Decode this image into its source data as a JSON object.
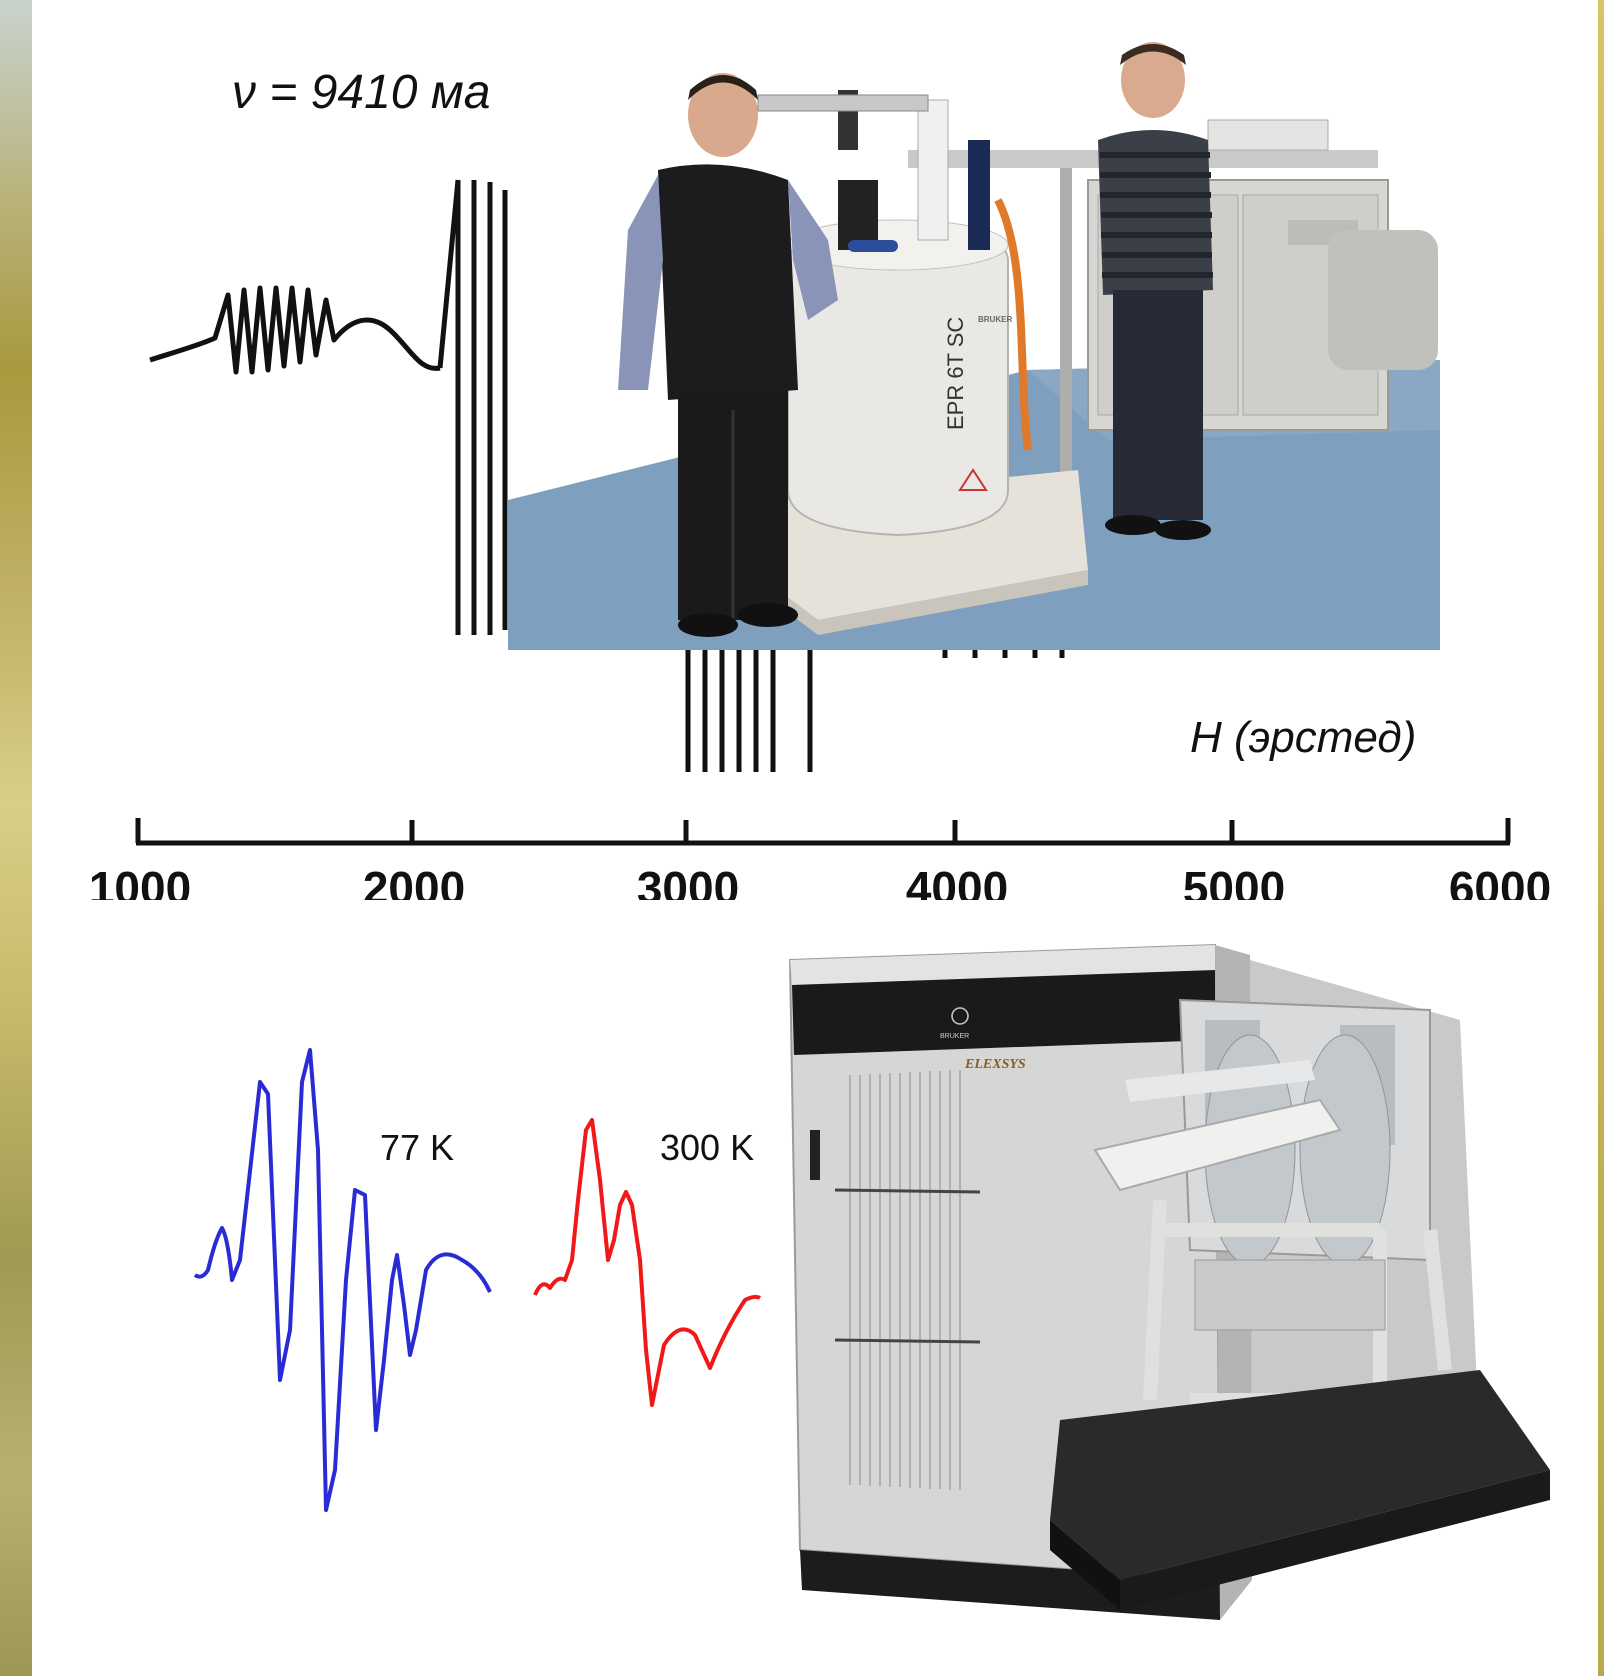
{
  "top_figure": {
    "frequency_label": "ν = 9410 ма",
    "axis_label": "H (эрстед)",
    "axis_ticks": [
      "1000",
      "2000",
      "3000",
      "4000",
      "5000",
      "6000"
    ]
  },
  "photo_top": {
    "magnet_label": "EPR 6T SC",
    "brand_label": "BRUKER"
  },
  "curves": {
    "low_temp_label": "77 K",
    "high_temp_label": "300 K",
    "low_temp_color": "#2b2bd6",
    "high_temp_color": "#f01818"
  },
  "photo_bottom": {
    "brand_label": "BRUKER",
    "model_label": "ELEXSYS"
  }
}
